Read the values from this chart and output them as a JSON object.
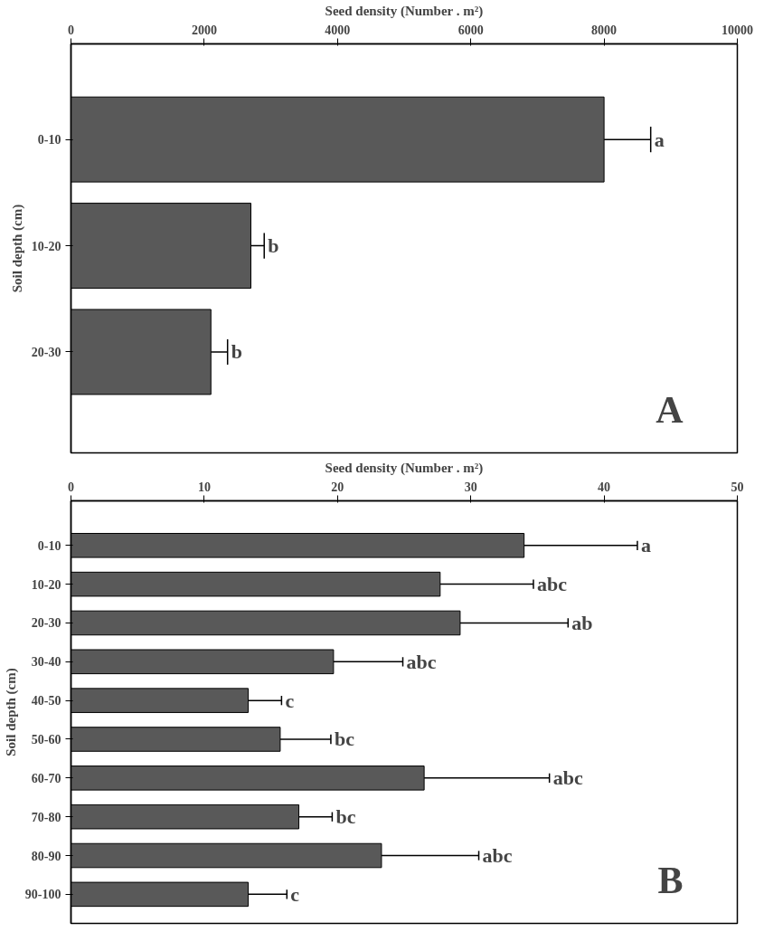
{
  "chart_data": [
    {
      "type": "bar",
      "orientation": "horizontal",
      "xlabel": "Seed density (Number . m²)",
      "ylabel": "Soil depth (cm)",
      "categories": [
        "0-10",
        "10-20",
        "20-30"
      ],
      "values": [
        8000,
        2700,
        2100
      ],
      "errors": [
        700,
        200,
        250
      ],
      "color": "#595959",
      "xlim": [
        0,
        10000
      ],
      "xticks": [
        0,
        2000,
        4000,
        6000,
        8000,
        10000
      ],
      "grid": false,
      "annotations": [
        {
          "text": "a",
          "x": 8700,
          "y": "0-10"
        },
        {
          "text": "b",
          "x": 2900,
          "y": "10-20"
        },
        {
          "text": "b",
          "x": 2350,
          "y": "20-30"
        },
        "A"
      ]
    },
    {
      "type": "bar",
      "orientation": "horizontal",
      "xlabel": "Seed density (Number . m²)",
      "ylabel": "Soil depth (cm)",
      "categories": [
        "0-10",
        "10-20",
        "20-30",
        "30-40",
        "40-50",
        "50-60",
        "60-70",
        "70-80",
        "80-90",
        "90-100"
      ],
      "values": [
        34.0,
        27.7,
        29.2,
        19.7,
        13.3,
        15.7,
        26.5,
        17.1,
        23.3,
        13.3
      ],
      "errors": [
        8.5,
        7.0,
        8.1,
        5.2,
        2.5,
        3.8,
        9.4,
        2.5,
        7.3,
        2.9
      ],
      "color": "#595959",
      "xlim": [
        0,
        50
      ],
      "xticks": [
        0,
        10,
        20,
        30,
        40,
        50
      ],
      "grid": false,
      "annotations": [
        {
          "text": "a",
          "x": 42.5,
          "y": "0-10"
        },
        {
          "text": "abc",
          "x": 34.7,
          "y": "10-20"
        },
        {
          "text": "ab",
          "x": 37.3,
          "y": "20-30"
        },
        {
          "text": "abc",
          "x": 24.9,
          "y": "30-40"
        },
        {
          "text": "c",
          "x": 15.8,
          "y": "40-50"
        },
        {
          "text": "bc",
          "x": 19.5,
          "y": "50-60"
        },
        {
          "text": "abc",
          "x": 35.9,
          "y": "60-70"
        },
        {
          "text": "bc",
          "x": 19.6,
          "y": "70-80"
        },
        {
          "text": "abc",
          "x": 30.6,
          "y": "80-90"
        },
        {
          "text": "c",
          "x": 16.2,
          "y": "90-100"
        },
        "B"
      ]
    }
  ]
}
